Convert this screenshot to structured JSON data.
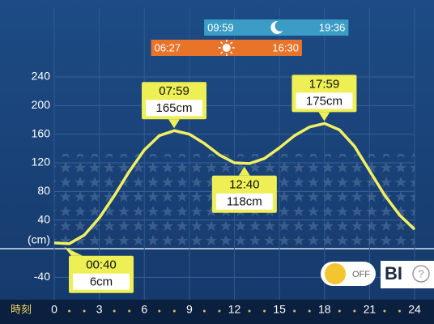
{
  "chart_data": {
    "type": "line",
    "x": [
      0,
      1,
      2,
      3,
      4,
      5,
      6,
      7,
      8,
      9,
      10,
      11,
      12,
      13,
      14,
      15,
      16,
      17,
      18,
      19,
      20,
      21,
      22,
      23,
      24
    ],
    "series": [
      {
        "color": "#f2ef62",
        "values": [
          8,
          7,
          19,
          43,
          74,
          108,
          138,
          158,
          165,
          160,
          147,
          131,
          120,
          119,
          126,
          141,
          158,
          170,
          175,
          166,
          143,
          109,
          75,
          47,
          27
        ]
      }
    ],
    "xlim": [
      0,
      24
    ],
    "xticks": [
      0,
      3,
      6,
      9,
      12,
      15,
      18,
      21,
      24
    ],
    "xlabel": "時刻",
    "ylim": [
      -60,
      260
    ],
    "yticks": [
      -40,
      {
        "value": 0,
        "label": "(cm)"
      },
      40,
      80,
      120,
      160,
      200,
      240
    ],
    "grid": true,
    "annotations": [
      {
        "time": "00:40",
        "value": 6,
        "value_label": "6cm"
      },
      {
        "time": "07:59",
        "value": 165,
        "value_label": "165cm"
      },
      {
        "time": "12:40",
        "value": 118,
        "value_label": "118cm"
      },
      {
        "time": "17:59",
        "value": 175,
        "value_label": "175cm"
      }
    ],
    "moon": {
      "rise": "09:59",
      "set": "19:36",
      "color": "#3b9cc6"
    },
    "sun": {
      "rise": "06:27",
      "set": "16:30",
      "color": "#e8742a"
    }
  },
  "ui": {
    "toggle": "OFF",
    "brand": "BI",
    "help": "?"
  }
}
